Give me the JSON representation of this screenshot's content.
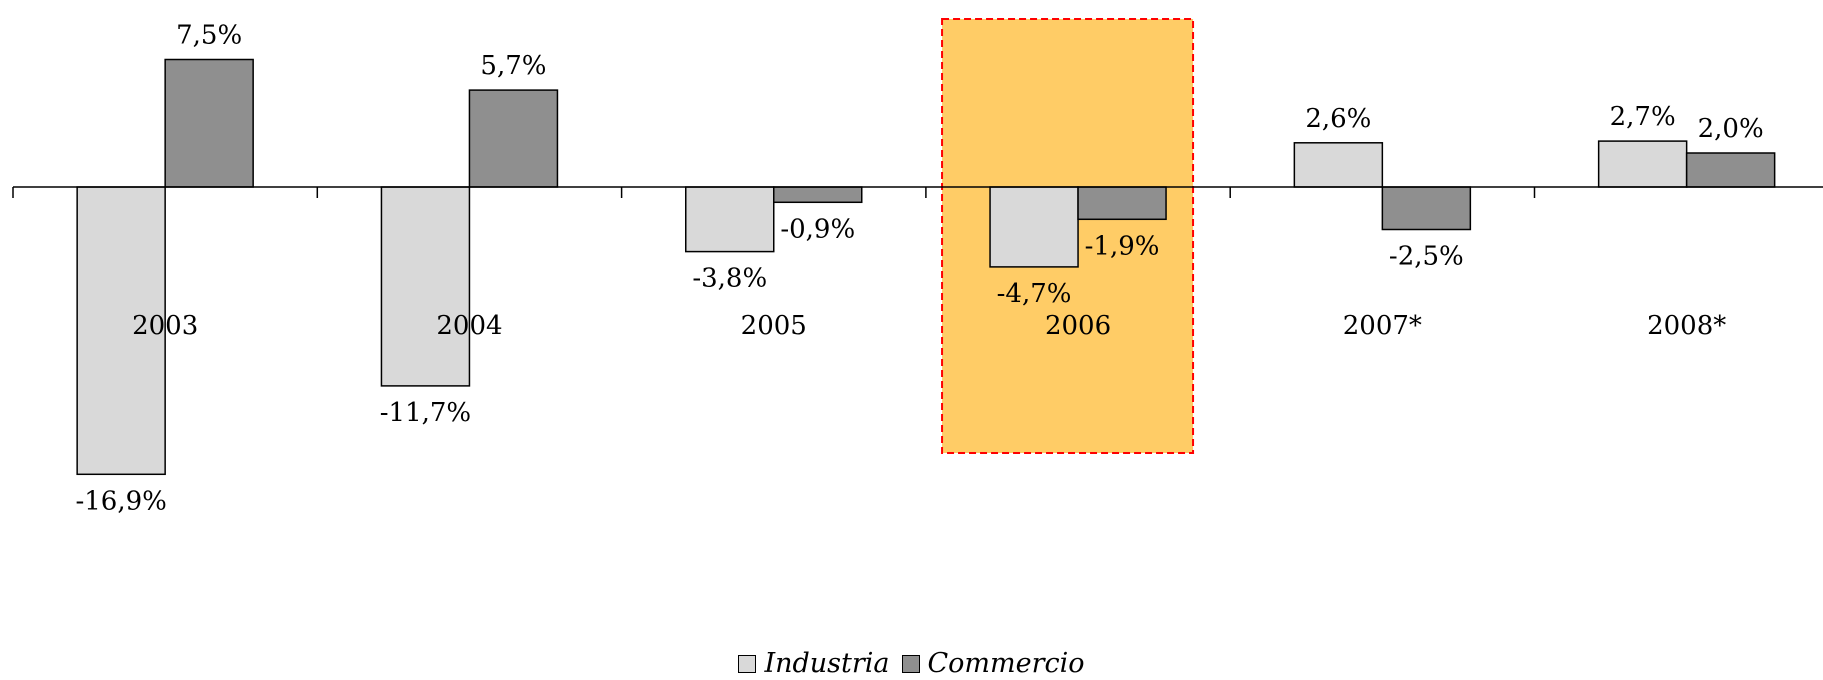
{
  "chart_data": {
    "type": "bar",
    "categories": [
      "2003",
      "2004",
      "2005",
      "2006",
      "2007*",
      "2008*"
    ],
    "series": [
      {
        "name": "Industria",
        "values": [
          -16.9,
          -11.7,
          -3.8,
          -4.7,
          2.6,
          2.7
        ],
        "labels": [
          "-16,9%",
          "-11,7%",
          "-3,8%",
          "-4,7%",
          "2,6%",
          "2,7%"
        ],
        "color": "#d9d9d9"
      },
      {
        "name": "Commercio",
        "values": [
          7.5,
          5.7,
          -0.9,
          -1.9,
          -2.5,
          2.0
        ],
        "labels": [
          "7,5%",
          "5,7%",
          "-0,9%",
          "-1,9%",
          "-2,5%",
          "2,0%"
        ],
        "color": "#8f8f8f"
      }
    ],
    "highlight": {
      "category": "2006",
      "fill": "#ffcc66",
      "border": "#ff0000"
    },
    "grid": false,
    "legend_position": "bottom",
    "ylim": [
      -20,
      10
    ]
  }
}
